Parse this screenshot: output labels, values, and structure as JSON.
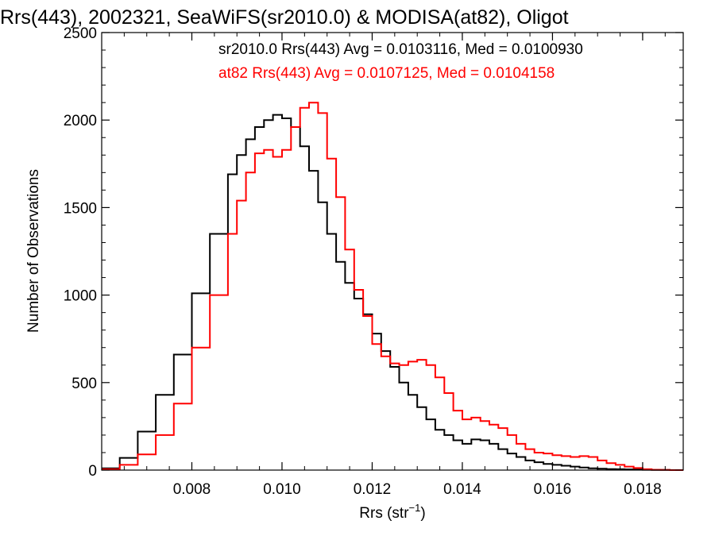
{
  "chart_data": {
    "type": "line",
    "title": "Rrs(443), 2002321, SeaWiFS(sr2010.0) & MODISA(at82), Oligot",
    "xlabel": "Rrs (str",
    "xlabel_sup": "−1",
    "xlabel_end": ")",
    "ylabel": "Number of Observations",
    "xlim": [
      0.006,
      0.0189
    ],
    "ylim": [
      0,
      2500
    ],
    "x_ticks": [
      0.008,
      0.01,
      0.012,
      0.014,
      0.016,
      0.018
    ],
    "x_tick_labels": [
      "0.008",
      "0.010",
      "0.012",
      "0.014",
      "0.016",
      "0.018"
    ],
    "y_ticks": [
      0,
      500,
      1000,
      1500,
      2000,
      2500
    ],
    "y_tick_labels": [
      "0",
      "500",
      "1000",
      "1500",
      "2000",
      "2500"
    ],
    "grid": false,
    "annotations": [
      {
        "text": "sr2010.0 Rrs(443) Avg = 0.0103116, Med = 0.0100930",
        "color": "#000000"
      },
      {
        "text": "at82 Rrs(443) Avg = 0.0107125, Med = 0.0104158",
        "color": "#ff0000"
      }
    ],
    "series": [
      {
        "name": "sr2010.0",
        "color": "#000000",
        "style": "histogram-step",
        "x": [
          0.006,
          0.0064,
          0.0068,
          0.0072,
          0.0076,
          0.008,
          0.0084,
          0.0088,
          0.009,
          0.0092,
          0.0094,
          0.0096,
          0.0098,
          0.01,
          0.0102,
          0.0104,
          0.0106,
          0.0108,
          0.011,
          0.0112,
          0.0114,
          0.0116,
          0.0118,
          0.012,
          0.0122,
          0.0124,
          0.0126,
          0.0128,
          0.013,
          0.0132,
          0.0134,
          0.0136,
          0.0138,
          0.014,
          0.0142,
          0.0144,
          0.0146,
          0.0148,
          0.015,
          0.0152,
          0.0154,
          0.0156,
          0.0158,
          0.016,
          0.0162,
          0.0164,
          0.0166,
          0.0168,
          0.017,
          0.0172,
          0.0174,
          0.0176,
          0.0178,
          0.018,
          0.0182,
          0.0184,
          0.0186,
          0.0188
        ],
        "y": [
          10,
          70,
          220,
          430,
          660,
          1010,
          1350,
          1690,
          1800,
          1890,
          1960,
          2000,
          2030,
          2010,
          1960,
          1850,
          1710,
          1530,
          1350,
          1190,
          1070,
          980,
          890,
          780,
          680,
          590,
          500,
          430,
          360,
          290,
          230,
          200,
          170,
          150,
          175,
          170,
          150,
          120,
          95,
          75,
          55,
          45,
          35,
          30,
          25,
          20,
          15,
          10,
          8,
          6,
          5,
          4,
          3,
          2,
          1,
          1,
          0,
          0
        ]
      },
      {
        "name": "at82",
        "color": "#ff0000",
        "style": "histogram-step",
        "x": [
          0.006,
          0.0064,
          0.0068,
          0.0072,
          0.0076,
          0.008,
          0.0084,
          0.0088,
          0.009,
          0.0092,
          0.0094,
          0.0096,
          0.0098,
          0.01,
          0.0102,
          0.0104,
          0.0106,
          0.0108,
          0.011,
          0.0112,
          0.0114,
          0.0116,
          0.0118,
          0.012,
          0.0122,
          0.0124,
          0.0126,
          0.0128,
          0.013,
          0.0132,
          0.0134,
          0.0136,
          0.0138,
          0.014,
          0.0142,
          0.0144,
          0.0146,
          0.0148,
          0.015,
          0.0152,
          0.0154,
          0.0156,
          0.0158,
          0.016,
          0.0162,
          0.0164,
          0.0166,
          0.0168,
          0.017,
          0.0172,
          0.0174,
          0.0176,
          0.0178,
          0.018,
          0.0182,
          0.0184,
          0.0186,
          0.0188
        ],
        "y": [
          5,
          30,
          90,
          200,
          380,
          700,
          1000,
          1350,
          1540,
          1700,
          1810,
          1830,
          1790,
          1830,
          1960,
          2070,
          2100,
          2040,
          1780,
          1560,
          1260,
          1030,
          880,
          720,
          650,
          610,
          600,
          620,
          630,
          600,
          530,
          440,
          340,
          290,
          300,
          280,
          260,
          240,
          200,
          150,
          120,
          100,
          95,
          85,
          80,
          75,
          80,
          75,
          55,
          40,
          30,
          20,
          12,
          5,
          2,
          1,
          0,
          0
        ]
      }
    ]
  }
}
